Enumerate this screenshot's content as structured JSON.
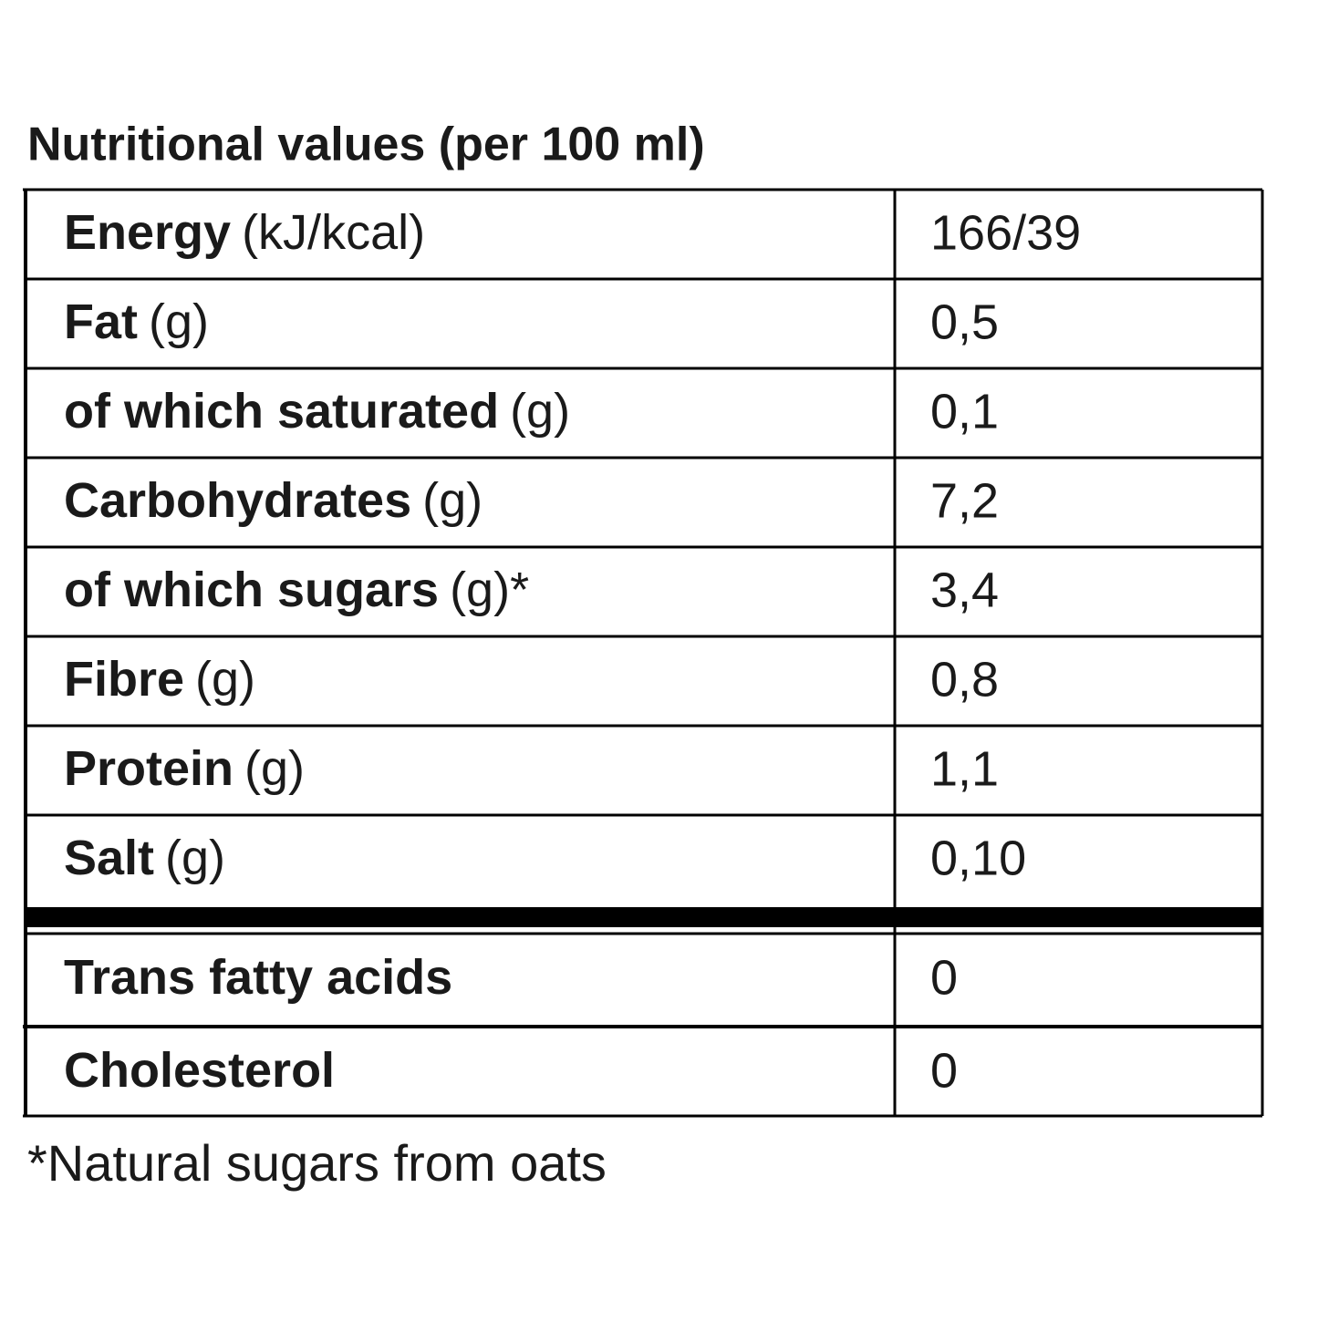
{
  "title": "Nutritional values (per 100 ml)",
  "table": {
    "rows": [
      {
        "label": "Energy",
        "unit": "(kJ/kcal)",
        "value": "166/39"
      },
      {
        "label": "Fat",
        "unit": "(g)",
        "value": "0,5"
      },
      {
        "label": "of which saturated",
        "unit": "(g)",
        "value": "0,1"
      },
      {
        "label": "Carbohydrates",
        "unit": "(g)",
        "value": "7,2"
      },
      {
        "label": "of which sugars",
        "unit": "(g)*",
        "value": "3,4"
      },
      {
        "label": "Fibre",
        "unit": "(g)",
        "value": "0,8"
      },
      {
        "label": "Protein",
        "unit": "(g)",
        "value": "1,1"
      },
      {
        "label": "Salt",
        "unit": "(g)",
        "value": "0,10"
      },
      {
        "label": "Trans fatty acids",
        "value": "0"
      },
      {
        "label": "Cholesterol",
        "value": "0"
      }
    ]
  },
  "footnote": "*Natural sugars from oats"
}
